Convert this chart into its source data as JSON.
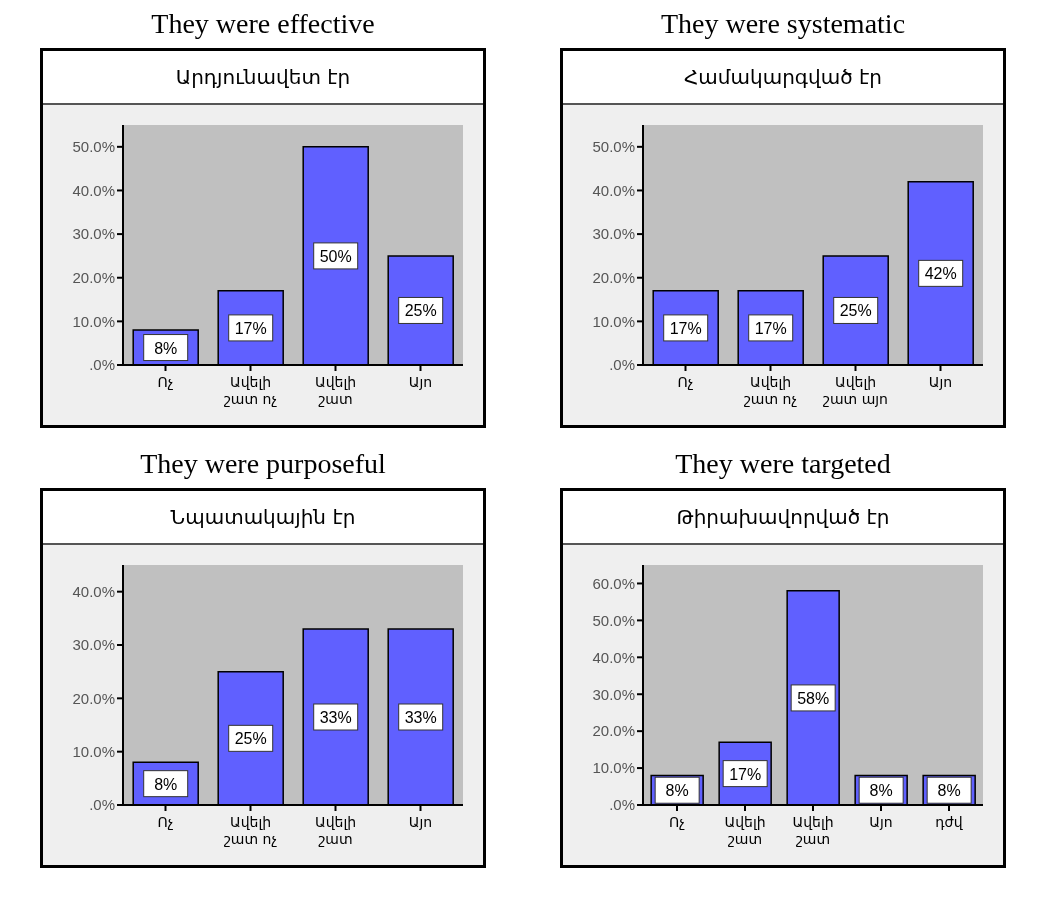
{
  "chart_data": [
    {
      "type": "bar",
      "title": "They were effective",
      "subtitle": "Արդյունավետ էր",
      "categories": [
        "Ոչ",
        "Ավելի շատ ոչ",
        "Ավելի շատ",
        "Այո"
      ],
      "values": [
        8,
        17,
        50,
        25
      ],
      "value_labels": [
        "8%",
        "17%",
        "50%",
        "25%"
      ],
      "color": "#6060ff",
      "ylim": [
        0,
        55
      ],
      "yticks": [
        {
          "value": 0,
          "label": ".0%"
        },
        {
          "value": 10,
          "label": "10.0%"
        },
        {
          "value": 20,
          "label": "20.0%"
        },
        {
          "value": 30,
          "label": "30.0%"
        },
        {
          "value": 40,
          "label": "40.0%"
        },
        {
          "value": 50,
          "label": "50.0%"
        }
      ],
      "grid": false
    },
    {
      "type": "bar",
      "title": "They were systematic",
      "subtitle": "Համակարգված էր",
      "categories": [
        "Ոչ",
        "Ավելի շատ ոչ",
        "Ավելի շատ այո",
        "Այո"
      ],
      "values": [
        17,
        17,
        25,
        42
      ],
      "value_labels": [
        "17%",
        "17%",
        "25%",
        "42%"
      ],
      "color": "#6060ff",
      "ylim": [
        0,
        55
      ],
      "yticks": [
        {
          "value": 0,
          "label": ".0%"
        },
        {
          "value": 10,
          "label": "10.0%"
        },
        {
          "value": 20,
          "label": "20.0%"
        },
        {
          "value": 30,
          "label": "30.0%"
        },
        {
          "value": 40,
          "label": "40.0%"
        },
        {
          "value": 50,
          "label": "50.0%"
        }
      ],
      "grid": false
    },
    {
      "type": "bar",
      "title": "They were purposeful",
      "subtitle": "Նպատակային էր",
      "categories": [
        "Ոչ",
        "Ավելի շատ ոչ",
        "Ավելի շատ",
        "Այո"
      ],
      "values": [
        8,
        25,
        33,
        33
      ],
      "value_labels": [
        "8%",
        "25%",
        "33%",
        "33%"
      ],
      "color": "#6060ff",
      "ylim": [
        0,
        45
      ],
      "yticks": [
        {
          "value": 0,
          "label": ".0%"
        },
        {
          "value": 10,
          "label": "10.0%"
        },
        {
          "value": 20,
          "label": "20.0%"
        },
        {
          "value": 30,
          "label": "30.0%"
        },
        {
          "value": 40,
          "label": "40.0%"
        }
      ],
      "grid": false
    },
    {
      "type": "bar",
      "title": "They were targeted",
      "subtitle": "Թիրախավորված էր",
      "categories": [
        "Ոչ",
        "Ավելի շատ",
        "Ավելի շատ",
        "Այո",
        "դժվ"
      ],
      "values": [
        8,
        17,
        58,
        8,
        8
      ],
      "value_labels": [
        "8%",
        "17%",
        "58%",
        "8%",
        "8%"
      ],
      "color": "#6060ff",
      "ylim": [
        0,
        65
      ],
      "yticks": [
        {
          "value": 0,
          "label": ".0%"
        },
        {
          "value": 10,
          "label": "10.0%"
        },
        {
          "value": 20,
          "label": "20.0%"
        },
        {
          "value": 30,
          "label": "30.0%"
        },
        {
          "value": 40,
          "label": "40.0%"
        },
        {
          "value": 50,
          "label": "50.0%"
        },
        {
          "value": 60,
          "label": "60.0%"
        }
      ],
      "grid": false
    }
  ]
}
